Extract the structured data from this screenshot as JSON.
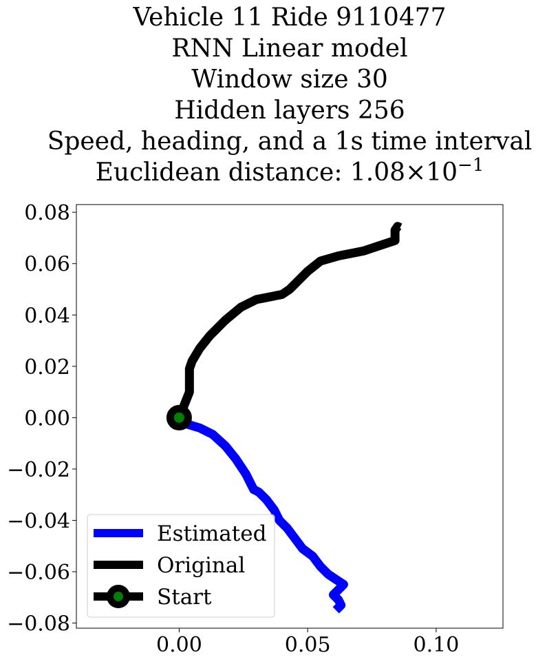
{
  "chart_data": {
    "type": "line",
    "title_lines": [
      "Vehicle 11 Ride 9110477",
      "RNN Linear model",
      "Window size 30",
      "Hidden layers 256",
      "Speed, heading, and a 1s time interval"
    ],
    "title_metric_prefix": "Euclidean distance: ",
    "title_metric_mantissa": "1.08",
    "title_metric_times": "×",
    "title_metric_base": "10",
    "title_metric_exponent": "−1",
    "xlabel": "",
    "ylabel": "",
    "xlim": [
      -0.04,
      0.126
    ],
    "ylim": [
      -0.082,
      0.083
    ],
    "x_ticks": [
      {
        "value": 0.0,
        "label": "0.00"
      },
      {
        "value": 0.05,
        "label": "0.05"
      },
      {
        "value": 0.1,
        "label": "0.10"
      }
    ],
    "y_ticks": [
      {
        "value": 0.08,
        "label": "0.08"
      },
      {
        "value": 0.06,
        "label": "0.06"
      },
      {
        "value": 0.04,
        "label": "0.04"
      },
      {
        "value": 0.02,
        "label": "0.02"
      },
      {
        "value": 0.0,
        "label": "0.00"
      },
      {
        "value": -0.02,
        "label": "−0.02"
      },
      {
        "value": -0.04,
        "label": "−0.04"
      },
      {
        "value": -0.06,
        "label": "−0.06"
      },
      {
        "value": -0.08,
        "label": "−0.08"
      }
    ],
    "grid": false,
    "legend_position": "lower-left",
    "series": [
      {
        "name": "Estimated",
        "color": "#0000ff",
        "points": [
          [
            0.0,
            0.0
          ],
          [
            0.003,
            -0.0025
          ],
          [
            0.008,
            -0.004
          ],
          [
            0.013,
            -0.0065
          ],
          [
            0.018,
            -0.011
          ],
          [
            0.022,
            -0.016
          ],
          [
            0.026,
            -0.022
          ],
          [
            0.029,
            -0.028
          ],
          [
            0.031,
            -0.029
          ],
          [
            0.034,
            -0.032
          ],
          [
            0.037,
            -0.036
          ],
          [
            0.039,
            -0.04
          ],
          [
            0.042,
            -0.043
          ],
          [
            0.045,
            -0.047
          ],
          [
            0.048,
            -0.051
          ],
          [
            0.052,
            -0.054
          ],
          [
            0.055,
            -0.058
          ],
          [
            0.058,
            -0.061
          ],
          [
            0.061,
            -0.063
          ],
          [
            0.064,
            -0.065
          ],
          [
            0.062,
            -0.067
          ],
          [
            0.06,
            -0.069
          ],
          [
            0.062,
            -0.071
          ],
          [
            0.063,
            -0.073
          ],
          [
            0.061,
            -0.075
          ]
        ]
      },
      {
        "name": "Original",
        "color": "#000000",
        "points": [
          [
            0.0,
            0.0
          ],
          [
            0.002,
            0.005
          ],
          [
            0.004,
            0.01
          ],
          [
            0.004,
            0.019
          ],
          [
            0.005,
            0.022
          ],
          [
            0.008,
            0.027
          ],
          [
            0.012,
            0.032
          ],
          [
            0.018,
            0.038
          ],
          [
            0.024,
            0.043
          ],
          [
            0.03,
            0.046
          ],
          [
            0.04,
            0.048
          ],
          [
            0.043,
            0.05
          ],
          [
            0.046,
            0.053
          ],
          [
            0.05,
            0.057
          ],
          [
            0.055,
            0.061
          ],
          [
            0.062,
            0.063
          ],
          [
            0.072,
            0.065
          ],
          [
            0.078,
            0.067
          ],
          [
            0.084,
            0.069
          ],
          [
            0.084,
            0.071
          ],
          [
            0.084,
            0.073
          ],
          [
            0.085,
            0.0745
          ],
          [
            0.086,
            0.074
          ]
        ]
      }
    ],
    "start_marker": {
      "name": "Start",
      "x": 0.0,
      "y": 0.0,
      "edge_color": "#000000",
      "face_color": "#008000"
    }
  }
}
